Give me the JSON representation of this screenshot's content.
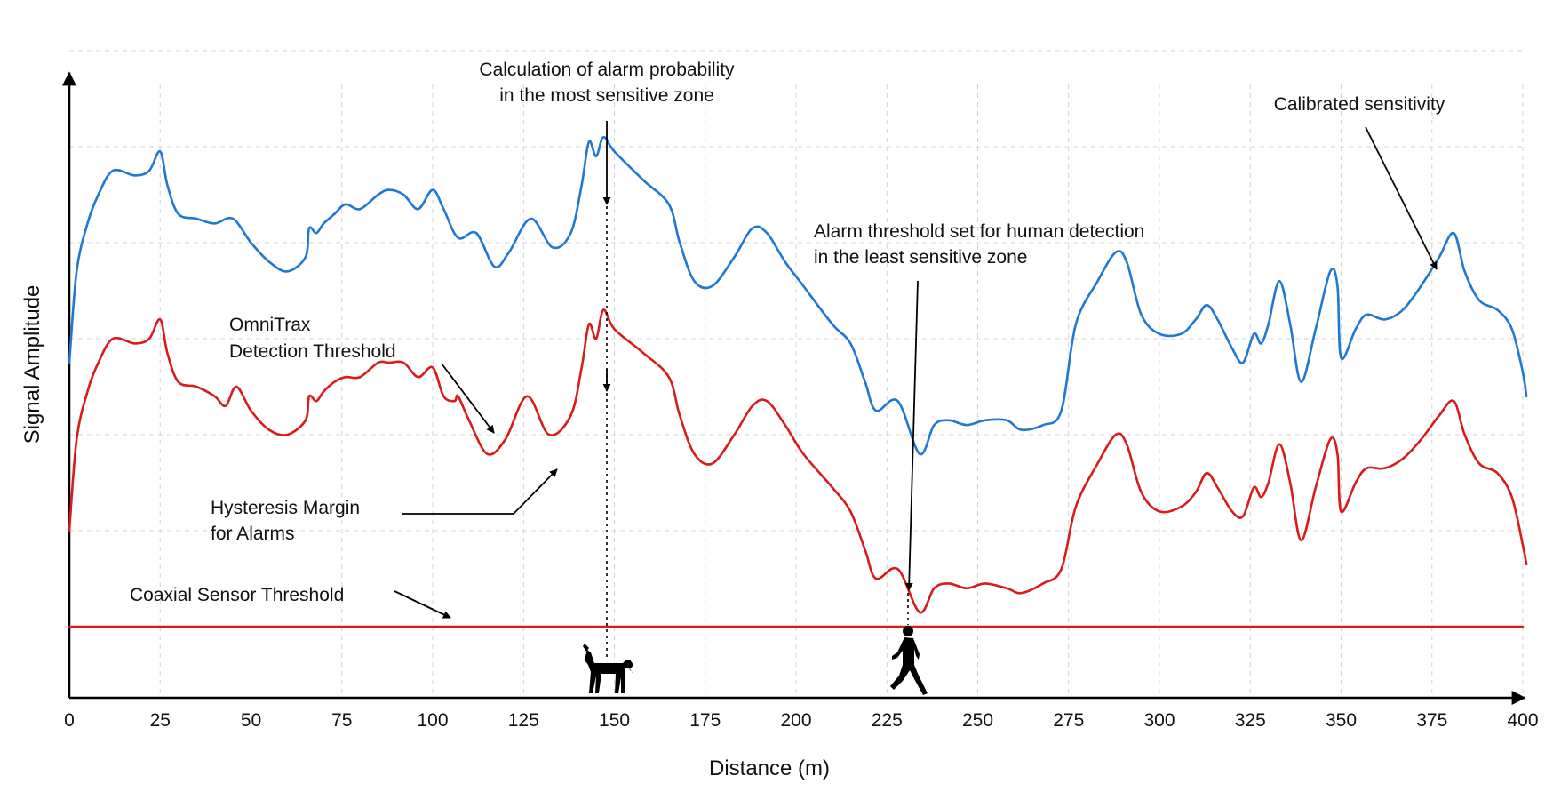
{
  "chart_data": {
    "type": "line",
    "title": "",
    "xlabel": "Distance (m)",
    "ylabel": "Signal Amplitude",
    "xlim": [
      0,
      400
    ],
    "x_ticks": [
      "0",
      "25",
      "50",
      "75",
      "100",
      "125",
      "150",
      "175",
      "200",
      "225",
      "250",
      "275",
      "300",
      "325",
      "350",
      "375",
      "400"
    ],
    "y_ticks_shown": false,
    "grid": true,
    "series": [
      {
        "color": "#1f78d1",
        "points": [
          [
            0,
            55
          ],
          [
            2,
            74
          ],
          [
            5,
            84
          ],
          [
            8,
            90
          ],
          [
            12,
            95
          ],
          [
            18,
            94
          ],
          [
            22,
            95
          ],
          [
            25,
            99
          ],
          [
            27,
            92
          ],
          [
            30,
            86
          ],
          [
            35,
            85
          ],
          [
            40,
            84
          ],
          [
            45,
            85
          ],
          [
            50,
            80
          ],
          [
            55,
            76
          ],
          [
            60,
            74
          ],
          [
            65,
            77
          ],
          [
            66,
            83
          ],
          [
            68,
            82
          ],
          [
            70,
            84
          ],
          [
            73,
            86
          ],
          [
            76,
            88
          ],
          [
            80,
            87
          ],
          [
            85,
            90
          ],
          [
            88,
            91
          ],
          [
            92,
            90
          ],
          [
            96,
            87
          ],
          [
            100,
            91
          ],
          [
            103,
            87
          ],
          [
            107,
            81
          ],
          [
            112,
            82
          ],
          [
            117,
            75
          ],
          [
            121,
            78
          ],
          [
            127,
            85
          ],
          [
            133,
            79
          ],
          [
            138,
            82
          ],
          [
            141,
            92
          ],
          [
            143,
            101
          ],
          [
            145,
            98
          ],
          [
            147,
            102
          ],
          [
            150,
            99
          ],
          [
            158,
            93
          ],
          [
            165,
            88
          ],
          [
            168,
            80
          ],
          [
            172,
            72
          ],
          [
            177,
            71
          ],
          [
            183,
            77
          ],
          [
            188,
            83
          ],
          [
            192,
            82
          ],
          [
            197,
            76
          ],
          [
            202,
            71
          ],
          [
            210,
            63
          ],
          [
            215,
            59
          ],
          [
            219,
            51
          ],
          [
            222,
            45
          ],
          [
            228,
            47
          ],
          [
            234,
            36
          ],
          [
            238,
            42
          ],
          [
            242,
            43
          ],
          [
            247,
            42
          ],
          [
            252,
            43
          ],
          [
            258,
            43
          ],
          [
            262,
            41
          ],
          [
            268,
            42
          ],
          [
            273,
            45
          ],
          [
            277,
            63
          ],
          [
            283,
            72
          ],
          [
            288,
            78
          ],
          [
            291,
            76
          ],
          [
            295,
            65
          ],
          [
            300,
            61
          ],
          [
            306,
            61
          ],
          [
            310,
            64
          ],
          [
            313,
            67
          ],
          [
            316,
            64
          ],
          [
            320,
            58
          ],
          [
            323,
            55
          ],
          [
            326,
            61
          ],
          [
            328,
            59
          ],
          [
            330,
            63
          ],
          [
            333,
            72
          ],
          [
            336,
            63
          ],
          [
            339,
            51
          ],
          [
            343,
            62
          ],
          [
            347,
            74
          ],
          [
            349,
            71
          ],
          [
            350,
            56
          ],
          [
            354,
            62
          ],
          [
            357,
            65
          ],
          [
            362,
            64
          ],
          [
            367,
            66
          ],
          [
            372,
            71
          ],
          [
            377,
            77
          ],
          [
            381,
            82
          ],
          [
            384,
            74
          ],
          [
            388,
            68
          ],
          [
            393,
            66
          ],
          [
            397,
            62
          ],
          [
            400,
            53
          ],
          [
            401,
            48
          ]
        ]
      },
      {
        "color": "#d91b1b",
        "points": [
          [
            0,
            20
          ],
          [
            2,
            39
          ],
          [
            5,
            49
          ],
          [
            8,
            55
          ],
          [
            12,
            60
          ],
          [
            18,
            59
          ],
          [
            22,
            60
          ],
          [
            25,
            64
          ],
          [
            27,
            57
          ],
          [
            30,
            51
          ],
          [
            35,
            50
          ],
          [
            40,
            48
          ],
          [
            43,
            46
          ],
          [
            46,
            50
          ],
          [
            50,
            45
          ],
          [
            55,
            41
          ],
          [
            60,
            40
          ],
          [
            65,
            43
          ],
          [
            66,
            48
          ],
          [
            68,
            47
          ],
          [
            70,
            49
          ],
          [
            73,
            51
          ],
          [
            76,
            52
          ],
          [
            80,
            52
          ],
          [
            85,
            55
          ],
          [
            88,
            55
          ],
          [
            92,
            55
          ],
          [
            96,
            52
          ],
          [
            100,
            54
          ],
          [
            103,
            48
          ],
          [
            106,
            47
          ],
          [
            107,
            48
          ],
          [
            110,
            43
          ],
          [
            115,
            36
          ],
          [
            120,
            39
          ],
          [
            126,
            48
          ],
          [
            132,
            40
          ],
          [
            138,
            44
          ],
          [
            141,
            54
          ],
          [
            143,
            63
          ],
          [
            145,
            60
          ],
          [
            147,
            66
          ],
          [
            150,
            62
          ],
          [
            158,
            57
          ],
          [
            165,
            52
          ],
          [
            168,
            44
          ],
          [
            172,
            36
          ],
          [
            177,
            34
          ],
          [
            183,
            40
          ],
          [
            188,
            46
          ],
          [
            192,
            47
          ],
          [
            197,
            42
          ],
          [
            202,
            36
          ],
          [
            210,
            29
          ],
          [
            215,
            24
          ],
          [
            219,
            16
          ],
          [
            222,
            10
          ],
          [
            228,
            12
          ],
          [
            234,
            3
          ],
          [
            238,
            8
          ],
          [
            242,
            9
          ],
          [
            247,
            8
          ],
          [
            252,
            9
          ],
          [
            258,
            8
          ],
          [
            262,
            7
          ],
          [
            268,
            9
          ],
          [
            273,
            12
          ],
          [
            277,
            25
          ],
          [
            283,
            34
          ],
          [
            288,
            40
          ],
          [
            291,
            38
          ],
          [
            295,
            28
          ],
          [
            300,
            24
          ],
          [
            306,
            25
          ],
          [
            310,
            28
          ],
          [
            313,
            32
          ],
          [
            316,
            29
          ],
          [
            320,
            24
          ],
          [
            323,
            23
          ],
          [
            326,
            29
          ],
          [
            328,
            27
          ],
          [
            330,
            30
          ],
          [
            333,
            38
          ],
          [
            336,
            30
          ],
          [
            339,
            18
          ],
          [
            343,
            29
          ],
          [
            347,
            39
          ],
          [
            349,
            36
          ],
          [
            350,
            24
          ],
          [
            354,
            30
          ],
          [
            357,
            33
          ],
          [
            362,
            33
          ],
          [
            367,
            35
          ],
          [
            372,
            39
          ],
          [
            377,
            44
          ],
          [
            381,
            47
          ],
          [
            384,
            40
          ],
          [
            388,
            34
          ],
          [
            393,
            32
          ],
          [
            397,
            27
          ],
          [
            400,
            17
          ],
          [
            401,
            13
          ]
        ]
      },
      {
        "color": "#d91b1b",
        "points": [
          [
            0,
            0
          ],
          [
            400,
            0
          ]
        ]
      }
    ],
    "annotations": [
      {
        "text": [
          "Calculation of alarm probability",
          "in the most sensitive zone"
        ]
      },
      {
        "text": [
          "Calibrated sensitivity"
        ]
      },
      {
        "text": [
          "Alarm threshold set for human detection",
          "in the least sensitive zone"
        ]
      },
      {
        "text": [
          "OmniTrax",
          "Detection Threshold"
        ]
      },
      {
        "text": [
          "Hysteresis Margin",
          "for Alarms"
        ]
      },
      {
        "text": [
          "Coaxial Sensor Threshold"
        ]
      }
    ],
    "icons": [
      "dog-icon",
      "walking-person-icon"
    ]
  }
}
